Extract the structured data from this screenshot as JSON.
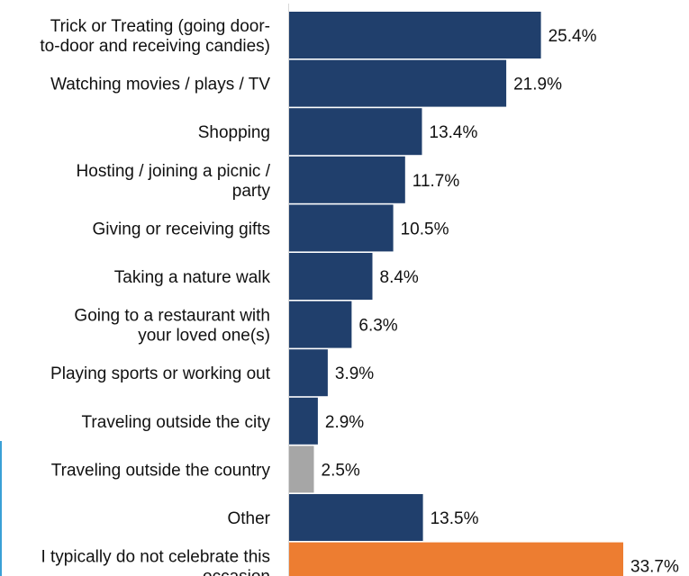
{
  "chart_data": {
    "type": "bar",
    "orientation": "horizontal",
    "categories": [
      [
        "Trick or Treating (going door-",
        "to-door and receiving candies)"
      ],
      [
        "Watching movies / plays / TV"
      ],
      [
        "Shopping"
      ],
      [
        "Hosting / joining a picnic /",
        "party"
      ],
      [
        "Giving or receiving gifts"
      ],
      [
        "Taking a nature walk"
      ],
      [
        "Going to a restaurant with",
        "your loved one(s)"
      ],
      [
        "Playing sports or working out"
      ],
      [
        "Traveling outside the city"
      ],
      [
        "Traveling outside the country"
      ],
      [
        "Other"
      ],
      [
        "I typically do not celebrate this",
        "occasion"
      ]
    ],
    "values": [
      25.4,
      21.9,
      13.4,
      11.7,
      10.5,
      8.4,
      6.3,
      3.9,
      2.9,
      2.5,
      13.5,
      33.7
    ],
    "value_labels": [
      "25.4%",
      "21.9%",
      "13.4%",
      "11.7%",
      "10.5%",
      "8.4%",
      "6.3%",
      "3.9%",
      "2.9%",
      "2.5%",
      "13.5%",
      "33.7%"
    ],
    "colors": [
      "#203f6c",
      "#203f6c",
      "#203f6c",
      "#203f6c",
      "#203f6c",
      "#203f6c",
      "#203f6c",
      "#203f6c",
      "#203f6c",
      "#a6a6a6",
      "#203f6c",
      "#ed7d31"
    ],
    "value_unit": "%",
    "xlim": [
      0,
      33.7
    ],
    "grid": false,
    "legend": "none",
    "title": "",
    "xlabel": "",
    "ylabel": ""
  }
}
